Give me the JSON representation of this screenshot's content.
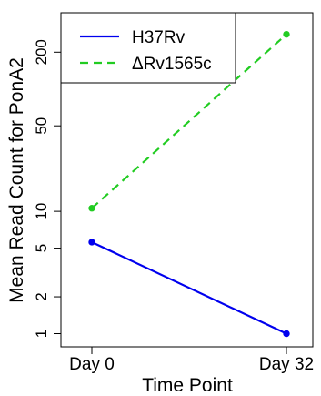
{
  "chart_data": {
    "type": "line",
    "xlabel": "Time Point",
    "ylabel": "Mean Read Count for PonA2",
    "categories": [
      "Day 0",
      "Day 32"
    ],
    "y_scale": "log",
    "ylim": [
      0.78,
      420
    ],
    "y_ticks": [
      1,
      2,
      5,
      10,
      50,
      200
    ],
    "y_tick_labels": [
      "1",
      "2",
      "5",
      "10",
      "50",
      "200"
    ],
    "legend_position": "top-left",
    "grid": false,
    "series": [
      {
        "name": "H37Rv",
        "values": [
          5.6,
          1.0
        ],
        "color": "#0000ee",
        "line_style": "solid"
      },
      {
        "name": "ΔRv1565c",
        "values": [
          10.6,
          280
        ],
        "color": "#22cc22",
        "line_style": "dashed"
      }
    ]
  }
}
